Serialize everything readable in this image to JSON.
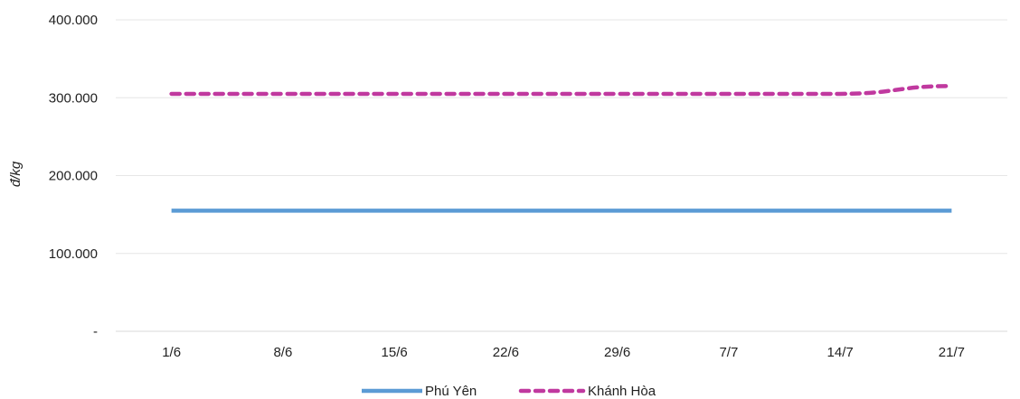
{
  "chart_data": {
    "type": "line",
    "categories": [
      "1/6",
      "8/6",
      "15/6",
      "22/6",
      "29/6",
      "7/7",
      "14/7",
      "21/7"
    ],
    "series": [
      {
        "name": "Phú Yên",
        "values": [
          155000,
          155000,
          155000,
          155000,
          155000,
          155000,
          155000,
          155000
        ],
        "color": "#5b9bd5",
        "style": "solid"
      },
      {
        "name": "Khánh Hòa",
        "values": [
          305000,
          305000,
          305000,
          305000,
          305000,
          305000,
          305000,
          315000
        ],
        "color": "#c0399f",
        "style": "dashed"
      }
    ],
    "ylabel": "đ/kg",
    "ylim": [
      0,
      400000
    ],
    "yticks": [
      {
        "value": 0,
        "label": "-"
      },
      {
        "value": 100000,
        "label": "100.000"
      },
      {
        "value": 200000,
        "label": "200.000"
      },
      {
        "value": 300000,
        "label": "300.000"
      },
      {
        "value": 400000,
        "label": "400.000"
      }
    ],
    "grid": true,
    "legend_position": "bottom"
  }
}
